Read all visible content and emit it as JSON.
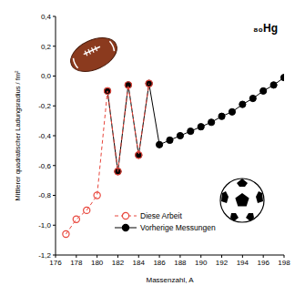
{
  "chart_data": {
    "type": "scatter",
    "annotation": "₈₀Hg",
    "x_label": "Massenzahl, A",
    "y_label": "Mittlerer quadratischer Ladungsradius / fm²",
    "xlim": [
      176,
      198
    ],
    "xticks": [
      176,
      178,
      180,
      182,
      184,
      186,
      188,
      190,
      192,
      194,
      196,
      198
    ],
    "ylim": [
      -1.2,
      0.4
    ],
    "yticks": [
      {
        "value": -1.2,
        "label": "-1,2"
      },
      {
        "value": -1.0,
        "label": "-1,0"
      },
      {
        "value": -0.8,
        "label": "-0,8"
      },
      {
        "value": -0.6,
        "label": "-0,6"
      },
      {
        "value": -0.4,
        "label": "-0,4"
      },
      {
        "value": -0.2,
        "label": "-0,2"
      },
      {
        "value": 0.0,
        "label": "0,0"
      },
      {
        "value": 0.2,
        "label": "0,2"
      },
      {
        "value": 0.4,
        "label": "0,4"
      }
    ],
    "grid": false,
    "legend": "lower left",
    "series": [
      {
        "name": "Diese Arbeit",
        "color": "#e8463c",
        "marker": "open_circle",
        "line_style": "dashed",
        "x": [
          177,
          178,
          179,
          180,
          181,
          182,
          183,
          184,
          185
        ],
        "values": [
          -1.06,
          -0.96,
          -0.9,
          -0.8,
          -0.1,
          -0.64,
          -0.06,
          -0.53,
          -0.05
        ]
      },
      {
        "name": "Vorherige Messungen",
        "color": "#000000",
        "marker": "circle",
        "line_style": "solid",
        "x": [
          181,
          182,
          183,
          184,
          185,
          186,
          187,
          188,
          189,
          190,
          191,
          192,
          193,
          194,
          195,
          196,
          197,
          198
        ],
        "values": [
          -0.1,
          -0.64,
          -0.06,
          -0.53,
          -0.05,
          -0.46,
          -0.43,
          -0.4,
          -0.37,
          -0.34,
          -0.31,
          -0.27,
          -0.24,
          -0.19,
          -0.15,
          -0.1,
          -0.06,
          -0.01
        ]
      }
    ]
  }
}
